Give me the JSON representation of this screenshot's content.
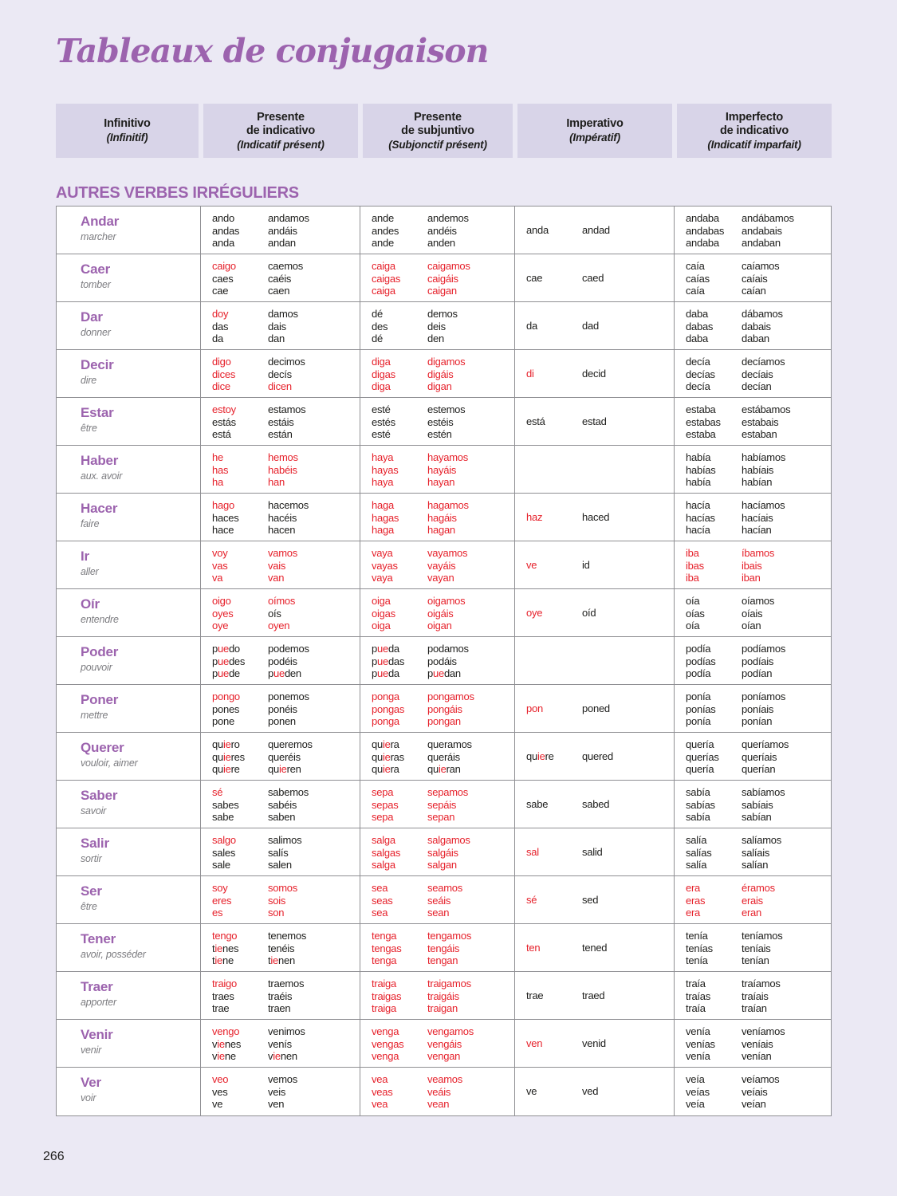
{
  "page": {
    "title": "Tableaux de conjugaison",
    "section_heading": "AUTRES VERBES IRRÉGULIERS",
    "page_number": "266"
  },
  "colors": {
    "background": "#ebe9f4",
    "header_background": "#d8d4e8",
    "accent_purple": "#9c63ae",
    "irregular_red": "#e6212b",
    "translation_gray": "#7c7c80",
    "text_black": "#1d1d1b",
    "table_border": "#8f8f93"
  },
  "header": {
    "columns": [
      {
        "es": "Infinitivo",
        "fr": "(Infinitif)"
      },
      {
        "es": "Presente\nde indicativo",
        "fr": "(Indicatif présent)"
      },
      {
        "es": "Presente\nde subjuntivo",
        "fr": "(Subjonctif présent)"
      },
      {
        "es": "Imperativo",
        "fr": "(Impératif)"
      },
      {
        "es": "Imperfecto\nde indicativo",
        "fr": "(Indicatif imparfait)"
      }
    ]
  },
  "legend_note": "red_segments_wrapped_in_square_brackets",
  "verbs": [
    {
      "infinitive": "Andar",
      "translation": "marcher",
      "presente_indicativo": [
        [
          "ando",
          "andamos"
        ],
        [
          "andas",
          "andáis"
        ],
        [
          "anda",
          "andan"
        ]
      ],
      "presente_subjuntivo": [
        [
          "ande",
          "andemos"
        ],
        [
          "andes",
          "andéis"
        ],
        [
          "ande",
          "anden"
        ]
      ],
      "imperativo": [
        "anda",
        "andad"
      ],
      "imperfecto_indicativo": [
        [
          "andaba",
          "andábamos"
        ],
        [
          "andabas",
          "andabais"
        ],
        [
          "andaba",
          "andaban"
        ]
      ]
    },
    {
      "infinitive": "Caer",
      "translation": "tomber",
      "presente_indicativo": [
        [
          "[caigo]",
          "caemos"
        ],
        [
          "caes",
          "caéis"
        ],
        [
          "cae",
          "caen"
        ]
      ],
      "presente_subjuntivo": [
        [
          "[caiga]",
          "[caigamos]"
        ],
        [
          "[caigas]",
          "[caigáis]"
        ],
        [
          "[caiga]",
          "[caigan]"
        ]
      ],
      "imperativo": [
        "cae",
        "caed"
      ],
      "imperfecto_indicativo": [
        [
          "caía",
          "caíamos"
        ],
        [
          "caías",
          "caíais"
        ],
        [
          "caía",
          "caían"
        ]
      ]
    },
    {
      "infinitive": "Dar",
      "translation": "donner",
      "presente_indicativo": [
        [
          "[doy]",
          "damos"
        ],
        [
          "das",
          "dais"
        ],
        [
          "da",
          "dan"
        ]
      ],
      "presente_subjuntivo": [
        [
          "dé",
          "demos"
        ],
        [
          "des",
          "deis"
        ],
        [
          "dé",
          "den"
        ]
      ],
      "imperativo": [
        "da",
        "dad"
      ],
      "imperfecto_indicativo": [
        [
          "daba",
          "dábamos"
        ],
        [
          "dabas",
          "dabais"
        ],
        [
          "daba",
          "daban"
        ]
      ]
    },
    {
      "infinitive": "Decir",
      "translation": "dire",
      "presente_indicativo": [
        [
          "[digo]",
          "decimos"
        ],
        [
          "[dices]",
          "decís"
        ],
        [
          "[dice]",
          "[dicen]"
        ]
      ],
      "presente_subjuntivo": [
        [
          "[diga]",
          "[digamos]"
        ],
        [
          "[digas]",
          "[digáis]"
        ],
        [
          "[diga]",
          "[digan]"
        ]
      ],
      "imperativo": [
        "[di]",
        "decid"
      ],
      "imperfecto_indicativo": [
        [
          "decía",
          "decíamos"
        ],
        [
          "decías",
          "decíais"
        ],
        [
          "decía",
          "decían"
        ]
      ]
    },
    {
      "infinitive": "Estar",
      "translation": "être",
      "presente_indicativo": [
        [
          "[estoy]",
          "estamos"
        ],
        [
          "estás",
          "estáis"
        ],
        [
          "está",
          "están"
        ]
      ],
      "presente_subjuntivo": [
        [
          "esté",
          "estemos"
        ],
        [
          "estés",
          "estéis"
        ],
        [
          "esté",
          "estén"
        ]
      ],
      "imperativo": [
        "está",
        "estad"
      ],
      "imperfecto_indicativo": [
        [
          "estaba",
          "estábamos"
        ],
        [
          "estabas",
          "estabais"
        ],
        [
          "estaba",
          "estaban"
        ]
      ]
    },
    {
      "infinitive": "Haber",
      "translation": "aux. avoir",
      "presente_indicativo": [
        [
          "[he]",
          "[hemos]"
        ],
        [
          "[has]",
          "[habéis]"
        ],
        [
          "[ha]",
          "[han]"
        ]
      ],
      "presente_subjuntivo": [
        [
          "[haya]",
          "[hayamos]"
        ],
        [
          "[hayas]",
          "[hayáis]"
        ],
        [
          "[haya]",
          "[hayan]"
        ]
      ],
      "imperativo": [
        "",
        ""
      ],
      "imperfecto_indicativo": [
        [
          "había",
          "habíamos"
        ],
        [
          "habías",
          "habíais"
        ],
        [
          "había",
          "habían"
        ]
      ]
    },
    {
      "infinitive": "Hacer",
      "translation": "faire",
      "presente_indicativo": [
        [
          "[hago]",
          "hacemos"
        ],
        [
          "haces",
          "hacéis"
        ],
        [
          "hace",
          "hacen"
        ]
      ],
      "presente_subjuntivo": [
        [
          "[haga]",
          "[hagamos]"
        ],
        [
          "[hagas]",
          "[hagáis]"
        ],
        [
          "[haga]",
          "[hagan]"
        ]
      ],
      "imperativo": [
        "[haz]",
        "haced"
      ],
      "imperfecto_indicativo": [
        [
          "hacía",
          "hacíamos"
        ],
        [
          "hacías",
          "hacíais"
        ],
        [
          "hacía",
          "hacían"
        ]
      ]
    },
    {
      "infinitive": "Ir",
      "translation": "aller",
      "presente_indicativo": [
        [
          "[voy]",
          "[vamos]"
        ],
        [
          "[vas]",
          "[vais]"
        ],
        [
          "[va]",
          "[van]"
        ]
      ],
      "presente_subjuntivo": [
        [
          "[vaya]",
          "[vayamos]"
        ],
        [
          "[vayas]",
          "[vayáis]"
        ],
        [
          "[vaya]",
          "[vayan]"
        ]
      ],
      "imperativo": [
        "[ve]",
        "id"
      ],
      "imperfecto_indicativo": [
        [
          "[iba]",
          "[íbamos]"
        ],
        [
          "[ibas]",
          "[ibais]"
        ],
        [
          "[iba]",
          "[iban]"
        ]
      ]
    },
    {
      "infinitive": "Oír",
      "translation": "entendre",
      "presente_indicativo": [
        [
          "[oigo]",
          "[oímos]"
        ],
        [
          "[oyes]",
          "oís"
        ],
        [
          "[oye]",
          "[oyen]"
        ]
      ],
      "presente_subjuntivo": [
        [
          "[oiga]",
          "[oigamos]"
        ],
        [
          "[oigas]",
          "[oigáis]"
        ],
        [
          "[oiga]",
          "[oigan]"
        ]
      ],
      "imperativo": [
        "[oye]",
        "oíd"
      ],
      "imperfecto_indicativo": [
        [
          "oía",
          "oíamos"
        ],
        [
          "oías",
          "oíais"
        ],
        [
          "oía",
          "oían"
        ]
      ]
    },
    {
      "infinitive": "Poder",
      "translation": "pouvoir",
      "presente_indicativo": [
        [
          "p[ue]do",
          "podemos"
        ],
        [
          "p[ue]des",
          "podéis"
        ],
        [
          "p[ue]de",
          "p[ue]den"
        ]
      ],
      "presente_subjuntivo": [
        [
          "p[ue]da",
          "podamos"
        ],
        [
          "p[ue]das",
          "podáis"
        ],
        [
          "p[ue]da",
          "p[ue]dan"
        ]
      ],
      "imperativo": [
        "",
        ""
      ],
      "imperfecto_indicativo": [
        [
          "podía",
          "podíamos"
        ],
        [
          "podías",
          "podíais"
        ],
        [
          "podía",
          "podían"
        ]
      ]
    },
    {
      "infinitive": "Poner",
      "translation": "mettre",
      "presente_indicativo": [
        [
          "[pongo]",
          "ponemos"
        ],
        [
          "pones",
          "ponéis"
        ],
        [
          "pone",
          "ponen"
        ]
      ],
      "presente_subjuntivo": [
        [
          "[ponga]",
          "[pongamos]"
        ],
        [
          "[pongas]",
          "[pongáis]"
        ],
        [
          "[ponga]",
          "[pongan]"
        ]
      ],
      "imperativo": [
        "[pon]",
        "poned"
      ],
      "imperfecto_indicativo": [
        [
          "ponía",
          "poníamos"
        ],
        [
          "ponías",
          "poníais"
        ],
        [
          "ponía",
          "ponían"
        ]
      ]
    },
    {
      "infinitive": "Querer",
      "translation": "vouloir, aimer",
      "presente_indicativo": [
        [
          "qu[ie]ro",
          "queremos"
        ],
        [
          "qu[ie]res",
          "queréis"
        ],
        [
          "qu[ie]re",
          "qu[ie]ren"
        ]
      ],
      "presente_subjuntivo": [
        [
          "qu[ie]ra",
          "queramos"
        ],
        [
          "qu[ie]ras",
          "queráis"
        ],
        [
          "qu[ie]ra",
          "qu[ie]ran"
        ]
      ],
      "imperativo": [
        "qu[ie]re",
        "quered"
      ],
      "imperfecto_indicativo": [
        [
          "quería",
          "queríamos"
        ],
        [
          "querías",
          "queríais"
        ],
        [
          "quería",
          "querían"
        ]
      ]
    },
    {
      "infinitive": "Saber",
      "translation": "savoir",
      "presente_indicativo": [
        [
          "[sé]",
          "sabemos"
        ],
        [
          "sabes",
          "sabéis"
        ],
        [
          "sabe",
          "saben"
        ]
      ],
      "presente_subjuntivo": [
        [
          "[sepa]",
          "[sepamos]"
        ],
        [
          "[sepas]",
          "[sepáis]"
        ],
        [
          "[sepa]",
          "[sepan]"
        ]
      ],
      "imperativo": [
        "sabe",
        "sabed"
      ],
      "imperfecto_indicativo": [
        [
          "sabía",
          "sabíamos"
        ],
        [
          "sabías",
          "sabíais"
        ],
        [
          "sabía",
          "sabían"
        ]
      ]
    },
    {
      "infinitive": "Salir",
      "translation": "sortir",
      "presente_indicativo": [
        [
          "[salgo]",
          "salimos"
        ],
        [
          "sales",
          "salís"
        ],
        [
          "sale",
          "salen"
        ]
      ],
      "presente_subjuntivo": [
        [
          "[salga]",
          "[salgamos]"
        ],
        [
          "[salgas]",
          "[salgáis]"
        ],
        [
          "[salga]",
          "[salgan]"
        ]
      ],
      "imperativo": [
        "[sal]",
        "salid"
      ],
      "imperfecto_indicativo": [
        [
          "salía",
          "salíamos"
        ],
        [
          "salías",
          "salíais"
        ],
        [
          "salía",
          "salían"
        ]
      ]
    },
    {
      "infinitive": "Ser",
      "translation": "être",
      "presente_indicativo": [
        [
          "[soy]",
          "[somos]"
        ],
        [
          "[eres]",
          "[sois]"
        ],
        [
          "[es]",
          "[son]"
        ]
      ],
      "presente_subjuntivo": [
        [
          "[sea]",
          "[seamos]"
        ],
        [
          "[seas]",
          "[seáis]"
        ],
        [
          "[sea]",
          "[sean]"
        ]
      ],
      "imperativo": [
        "[sé]",
        "sed"
      ],
      "imperfecto_indicativo": [
        [
          "[era]",
          "[éramos]"
        ],
        [
          "[eras]",
          "[erais]"
        ],
        [
          "[era]",
          "[eran]"
        ]
      ]
    },
    {
      "infinitive": "Tener",
      "translation": "avoir, posséder",
      "presente_indicativo": [
        [
          "[tengo]",
          "tenemos"
        ],
        [
          "t[ie]nes",
          "tenéis"
        ],
        [
          "t[ie]ne",
          "t[ie]nen"
        ]
      ],
      "presente_subjuntivo": [
        [
          "[tenga]",
          "[tengamos]"
        ],
        [
          "[tengas]",
          "[tengáis]"
        ],
        [
          "[tenga]",
          "[tengan]"
        ]
      ],
      "imperativo": [
        "[ten]",
        "tened"
      ],
      "imperfecto_indicativo": [
        [
          "tenía",
          "teníamos"
        ],
        [
          "tenías",
          "teníais"
        ],
        [
          "tenía",
          "tenían"
        ]
      ]
    },
    {
      "infinitive": "Traer",
      "translation": "apporter",
      "presente_indicativo": [
        [
          "[traigo]",
          "traemos"
        ],
        [
          "traes",
          "traéis"
        ],
        [
          "trae",
          "traen"
        ]
      ],
      "presente_subjuntivo": [
        [
          "[traiga]",
          "[traigamos]"
        ],
        [
          "[traigas]",
          "[traigáis]"
        ],
        [
          "[traiga]",
          "[traigan]"
        ]
      ],
      "imperativo": [
        "trae",
        "traed"
      ],
      "imperfecto_indicativo": [
        [
          "traía",
          "traíamos"
        ],
        [
          "traías",
          "traíais"
        ],
        [
          "traía",
          "traían"
        ]
      ]
    },
    {
      "infinitive": "Venir",
      "translation": "venir",
      "presente_indicativo": [
        [
          "[vengo]",
          "venimos"
        ],
        [
          "v[ie]nes",
          "venís"
        ],
        [
          "v[ie]ne",
          "v[ie]nen"
        ]
      ],
      "presente_subjuntivo": [
        [
          "[venga]",
          "[vengamos]"
        ],
        [
          "[vengas]",
          "[vengáis]"
        ],
        [
          "[venga]",
          "[vengan]"
        ]
      ],
      "imperativo": [
        "[ven]",
        "venid"
      ],
      "imperfecto_indicativo": [
        [
          "venía",
          "veníamos"
        ],
        [
          "venías",
          "veníais"
        ],
        [
          "venía",
          "venían"
        ]
      ]
    },
    {
      "infinitive": "Ver",
      "translation": "voir",
      "presente_indicativo": [
        [
          "[veo]",
          "vemos"
        ],
        [
          "ves",
          "veis"
        ],
        [
          "ve",
          "ven"
        ]
      ],
      "presente_subjuntivo": [
        [
          "[vea]",
          "[veamos]"
        ],
        [
          "[veas]",
          "[veáis]"
        ],
        [
          "[vea]",
          "[vean]"
        ]
      ],
      "imperativo": [
        "ve",
        "ved"
      ],
      "imperfecto_indicativo": [
        [
          "veía",
          "veíamos"
        ],
        [
          "veías",
          "veíais"
        ],
        [
          "veía",
          "veían"
        ]
      ]
    }
  ]
}
